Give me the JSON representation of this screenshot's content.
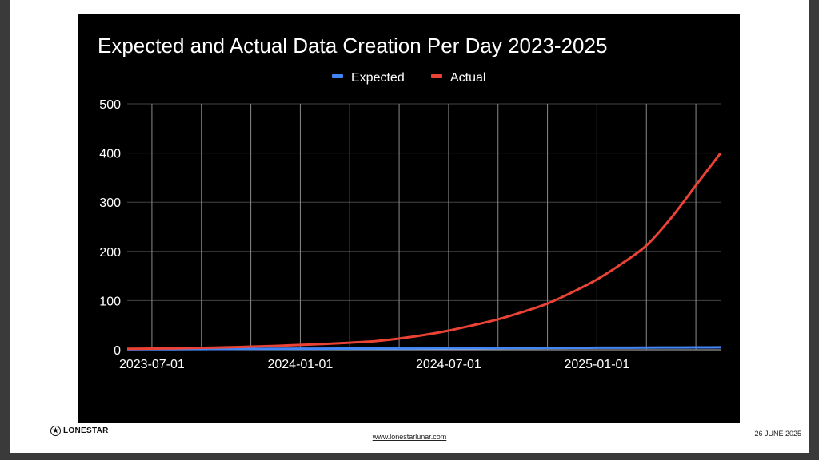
{
  "footer": {
    "logo_text": "LONESTAR",
    "url": "www.lonestarlunar.com",
    "date": "26 JUNE  2025"
  },
  "chart_data": {
    "type": "line",
    "title": "Expected and Actual Data Creation Per Day 2023-2025",
    "xlabel": "",
    "ylabel": "",
    "legend_position": "top",
    "grid": true,
    "ylim": [
      0,
      500
    ],
    "yticks": [
      0,
      100,
      200,
      300,
      400,
      500
    ],
    "xtick_labels": [
      "2023-07-01",
      "2024-01-01",
      "2024-07-01",
      "2025-01-01"
    ],
    "x": [
      "2023-06",
      "2023-07",
      "2023-08",
      "2023-09",
      "2023-10",
      "2023-11",
      "2023-12",
      "2024-01",
      "2024-02",
      "2024-03",
      "2024-04",
      "2024-05",
      "2024-06",
      "2024-07",
      "2024-08",
      "2024-09",
      "2024-10",
      "2024-11",
      "2024-12",
      "2025-01",
      "2025-02",
      "2025-03",
      "2025-04",
      "2025-05",
      "2025-06"
    ],
    "series": [
      {
        "name": "Expected",
        "color": "#4285f4",
        "values": [
          1,
          1.2,
          1.3,
          1.5,
          1.7,
          1.8,
          2,
          2.2,
          2.3,
          2.5,
          2.7,
          2.8,
          3,
          3.2,
          3.3,
          3.5,
          3.7,
          3.8,
          4,
          4.2,
          4.3,
          4.5,
          4.7,
          4.8,
          5
        ]
      },
      {
        "name": "Actual",
        "color": "#ea4335",
        "values": [
          2,
          2.5,
          3,
          4,
          5,
          6.5,
          8,
          10,
          12,
          14.5,
          17.5,
          23,
          30,
          39,
          50,
          62,
          77,
          94,
          117,
          143,
          175,
          212,
          268,
          334,
          400
        ]
      }
    ]
  }
}
